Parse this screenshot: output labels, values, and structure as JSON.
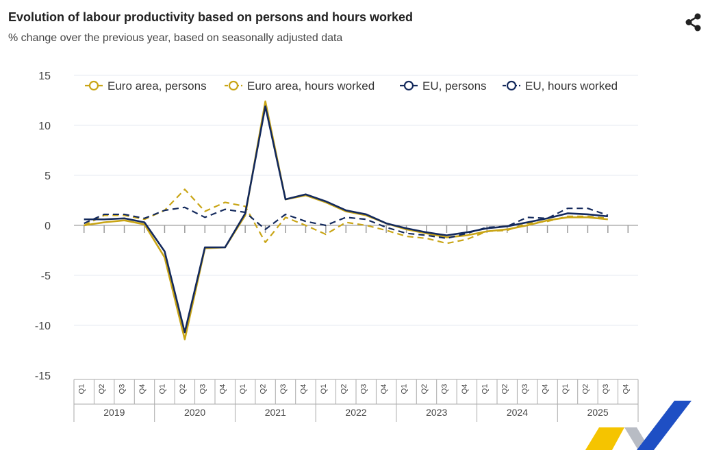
{
  "header": {
    "title": "Evolution of labour productivity based on persons and hours worked",
    "subtitle": "% change over the previous year, based on seasonally adjusted data",
    "share_icon": "share-icon"
  },
  "colors": {
    "euro_area": "#c9a516",
    "eu": "#13295c"
  },
  "chart_data": {
    "type": "line",
    "title": "Evolution of labour productivity based on persons and hours worked",
    "subtitle": "% change over the previous year, based on seasonally adjusted data",
    "ylim": [
      -15,
      15
    ],
    "yticks": [
      "15",
      "10",
      "5",
      "0",
      "-5",
      "-10",
      "-15"
    ],
    "ytick_values": [
      15,
      10,
      5,
      0,
      -5,
      -10,
      -15
    ],
    "grid": true,
    "legend": "top",
    "years": [
      "2019",
      "2020",
      "2021",
      "2022",
      "2023",
      "2024",
      "2025"
    ],
    "quarters": [
      "Q1",
      "Q2",
      "Q3",
      "Q4"
    ],
    "series": [
      {
        "name": "Euro area, persons",
        "color": "#c9a516",
        "dash": false,
        "values": [
          0.0,
          0.3,
          0.5,
          0.1,
          -3.2,
          -11.4,
          -2.3,
          -2.2,
          1.0,
          12.4,
          2.6,
          3.0,
          2.3,
          1.4,
          1.0,
          0.2,
          -0.4,
          -0.8,
          -1.2,
          -1.0,
          -0.6,
          -0.4,
          0.0,
          0.5,
          0.8,
          0.8,
          0.6
        ]
      },
      {
        "name": "Euro area, hours worked",
        "color": "#c9a516",
        "dash": true,
        "values": [
          0.0,
          1.0,
          1.0,
          0.6,
          1.5,
          3.6,
          1.4,
          2.3,
          1.9,
          -1.7,
          0.8,
          0.0,
          -0.9,
          0.3,
          0.0,
          -0.5,
          -1.1,
          -1.3,
          -1.8,
          -1.4,
          -0.6,
          -0.5,
          0.2,
          0.4,
          0.9,
          0.9,
          0.7
        ]
      },
      {
        "name": "EU, persons",
        "color": "#13295c",
        "dash": false,
        "values": [
          0.6,
          0.6,
          0.7,
          0.3,
          -2.6,
          -10.7,
          -2.2,
          -2.2,
          1.2,
          11.9,
          2.6,
          3.1,
          2.4,
          1.5,
          1.1,
          0.2,
          -0.3,
          -0.7,
          -1.0,
          -0.7,
          -0.3,
          -0.1,
          0.3,
          0.7,
          1.2,
          1.1,
          0.9
        ]
      },
      {
        "name": "EU, hours worked",
        "color": "#13295c",
        "dash": true,
        "values": [
          0.2,
          1.1,
          1.1,
          0.7,
          1.5,
          1.8,
          0.8,
          1.6,
          1.3,
          -0.4,
          1.1,
          0.4,
          0.0,
          0.8,
          0.6,
          -0.2,
          -0.8,
          -1.0,
          -1.3,
          -0.8,
          -0.2,
          -0.1,
          0.8,
          0.7,
          1.7,
          1.7,
          1.0
        ]
      }
    ]
  }
}
